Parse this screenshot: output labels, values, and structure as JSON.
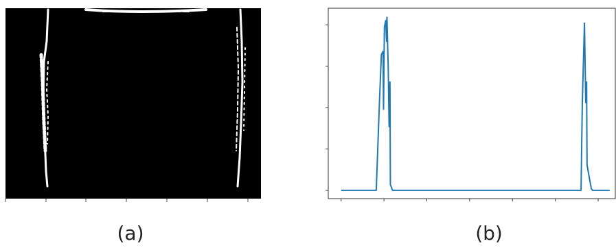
{
  "captions": [
    "(a)",
    "(b)"
  ],
  "chart_data": {
    "type": "line",
    "x": [
      0,
      82,
      90,
      94,
      98,
      99,
      101,
      104,
      106,
      107,
      110,
      112,
      114,
      115,
      120,
      560,
      563,
      568,
      571,
      573,
      574,
      578,
      584,
      587,
      627
    ],
    "values": [
      0,
      0,
      114,
      164,
      168,
      98,
      197,
      205,
      180,
      209,
      147,
      77,
      131,
      7,
      0,
      0,
      106,
      202,
      106,
      131,
      31,
      19,
      2,
      0,
      0
    ],
    "color": "#1f77b4",
    "xlim": [
      -30,
      640
    ],
    "ylim": [
      -10,
      220
    ],
    "xticks": [
      0,
      100,
      200,
      300,
      400,
      500,
      600
    ],
    "yticks": [
      0,
      50,
      100,
      150,
      200
    ],
    "grid": false
  }
}
